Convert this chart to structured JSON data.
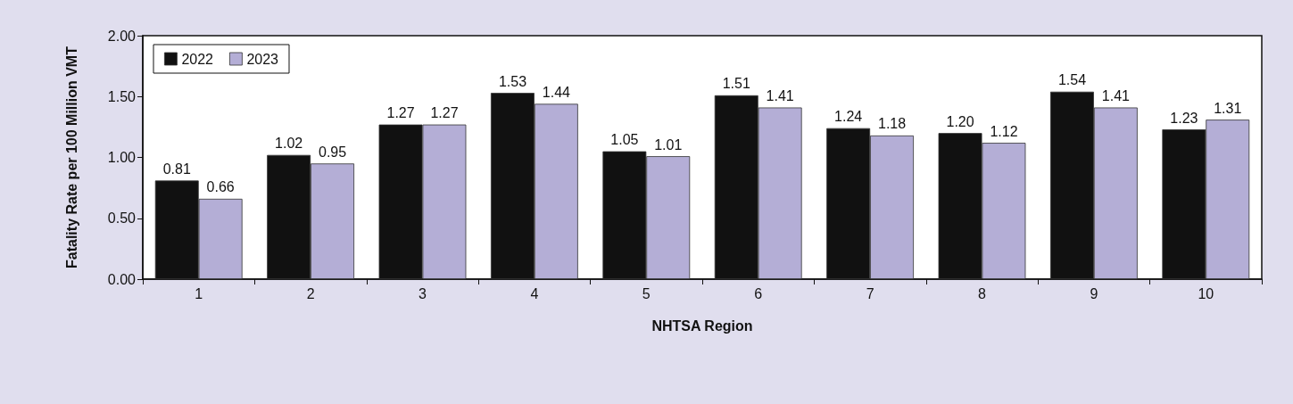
{
  "chart_data": {
    "type": "bar",
    "xlabel": "NHTSA Region",
    "ylabel": "Fatality Rate per 100 Million VMT",
    "categories": [
      "1",
      "2",
      "3",
      "4",
      "5",
      "6",
      "7",
      "8",
      "9",
      "10"
    ],
    "series": [
      {
        "name": "2022",
        "color": "#111111",
        "values": [
          0.81,
          1.02,
          1.27,
          1.53,
          1.05,
          1.51,
          1.24,
          1.2,
          1.54,
          1.23
        ],
        "value_labels": [
          "0.81",
          "1.02",
          "1.27",
          "1.53",
          "1.05",
          "1.51",
          "1.24",
          "1.20",
          "1.54",
          "1.23"
        ]
      },
      {
        "name": "2023",
        "color": "#b4aed6",
        "values": [
          0.66,
          0.95,
          1.27,
          1.44,
          1.01,
          1.41,
          1.18,
          1.12,
          1.41,
          1.31
        ],
        "value_labels": [
          "0.66",
          "0.95",
          "1.27",
          "1.44",
          "1.01",
          "1.41",
          "1.18",
          "1.12",
          "1.41",
          "1.31"
        ]
      }
    ],
    "ylim": [
      0,
      2
    ],
    "yticks": [
      {
        "value": 0,
        "label": "0.00"
      },
      {
        "value": 0.5,
        "label": "0.50"
      },
      {
        "value": 1,
        "label": "1.00"
      },
      {
        "value": 1.5,
        "label": "1.50"
      },
      {
        "value": 2,
        "label": "2.00"
      }
    ],
    "grid": false,
    "legend": "top left"
  }
}
